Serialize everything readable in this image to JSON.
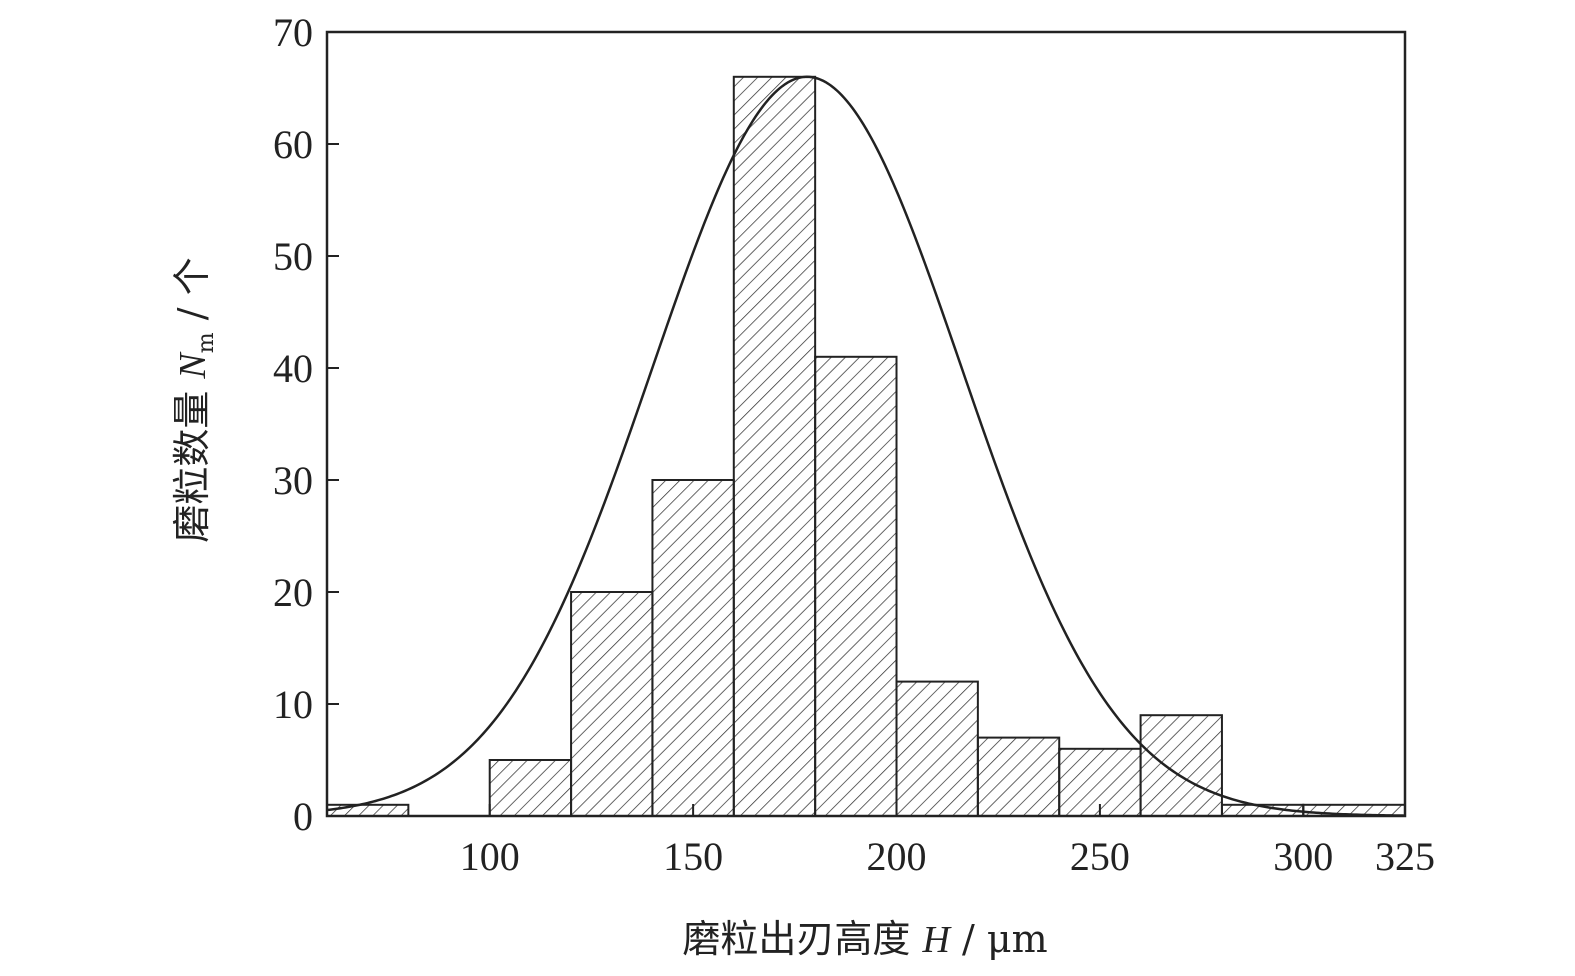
{
  "chart_data": {
    "type": "bar",
    "bar_style": "histogram, diagonal hatch",
    "bins": [
      {
        "x0": 60,
        "x1": 80,
        "count": 1
      },
      {
        "x0": 100,
        "x1": 120,
        "count": 5
      },
      {
        "x0": 120,
        "x1": 140,
        "count": 20
      },
      {
        "x0": 140,
        "x1": 160,
        "count": 30
      },
      {
        "x0": 160,
        "x1": 180,
        "count": 66
      },
      {
        "x0": 180,
        "x1": 200,
        "count": 41
      },
      {
        "x0": 200,
        "x1": 220,
        "count": 12
      },
      {
        "x0": 220,
        "x1": 240,
        "count": 7
      },
      {
        "x0": 240,
        "x1": 260,
        "count": 6
      },
      {
        "x0": 260,
        "x1": 280,
        "count": 9
      },
      {
        "x0": 280,
        "x1": 300,
        "count": 1
      },
      {
        "x0": 300,
        "x1": 325,
        "count": 1
      }
    ],
    "fit_curve": {
      "type": "normal",
      "mean": 178,
      "sd": 38,
      "peak": 66
    },
    "xlim": [
      60,
      325
    ],
    "ylim": [
      0,
      70
    ],
    "xticks": [
      "100",
      "150",
      "200",
      "250",
      "300",
      "325"
    ],
    "xtick_values": [
      100,
      150,
      200,
      250,
      300,
      325
    ],
    "yticks": [
      "0",
      "10",
      "20",
      "30",
      "40",
      "50",
      "60",
      "70"
    ],
    "ytick_values": [
      0,
      10,
      20,
      30,
      40,
      50,
      60,
      70
    ],
    "xlabel": {
      "text": "磨粒出刃高度 ",
      "var": "H",
      "unit": " / μm"
    },
    "ylabel": {
      "text": "磨粒数量 ",
      "var": "N",
      "sub": "m",
      "unit": " / 个"
    },
    "grid": false
  }
}
